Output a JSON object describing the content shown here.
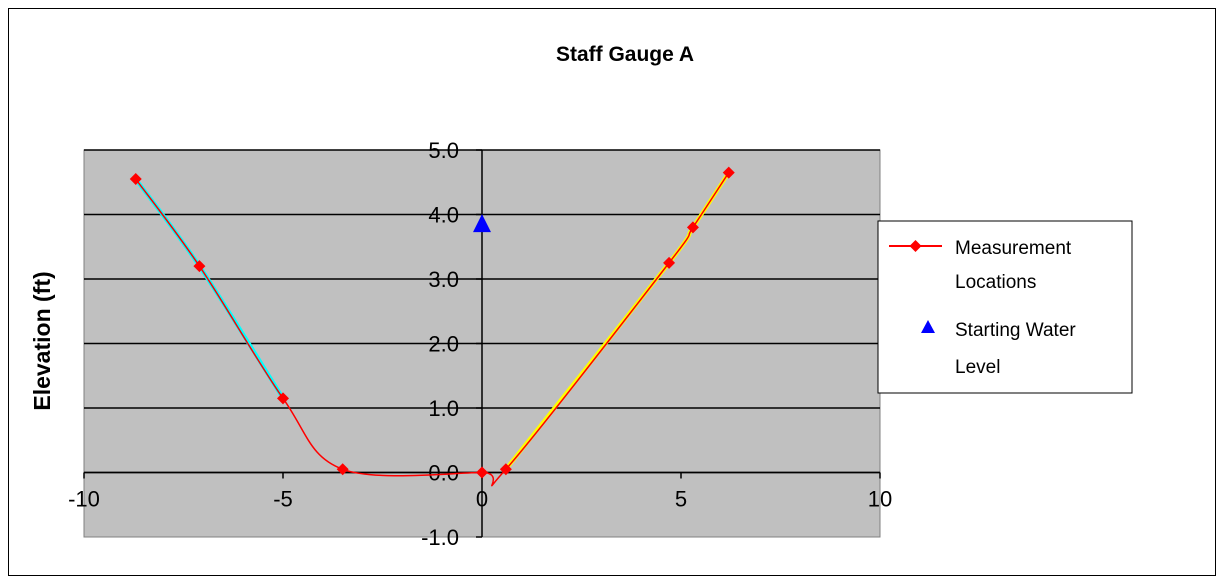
{
  "chart_data": {
    "type": "line",
    "title": "Staff Gauge A",
    "ylabel": "Elevation (ft)",
    "xlabel": "",
    "xlim": [
      -10,
      10
    ],
    "ylim": [
      -1.0,
      5.0
    ],
    "x_ticks": [
      "-10",
      "-5",
      "0",
      "5",
      "10"
    ],
    "y_ticks": [
      "-1.0",
      "0.0",
      "1.0",
      "2.0",
      "3.0",
      "4.0",
      "5.0"
    ],
    "grid": true,
    "legend_position": "right",
    "plot_background": "#c0c0c0",
    "series": [
      {
        "name": "Measurement Locations",
        "color": "#ff0000",
        "marker": "diamond",
        "points": [
          {
            "x": -8.7,
            "y": 4.55
          },
          {
            "x": -7.1,
            "y": 3.2
          },
          {
            "x": -5.0,
            "y": 1.15
          },
          {
            "x": -3.5,
            "y": 0.05
          },
          {
            "x": 0.0,
            "y": 0.0
          },
          {
            "x": 0.6,
            "y": 0.05
          },
          {
            "x": 4.7,
            "y": 3.25
          },
          {
            "x": 5.3,
            "y": 3.8
          },
          {
            "x": 6.2,
            "y": 4.65
          }
        ]
      },
      {
        "name": "Starting Water Level",
        "color": "#0000ff",
        "marker": "triangle",
        "points": [
          {
            "x": 0.0,
            "y": 3.85
          }
        ]
      }
    ],
    "highlight_segments": [
      {
        "color": "#00ffff",
        "x": [
          -8.7,
          -5.0
        ]
      },
      {
        "color": "#ffff00",
        "x": [
          0.6,
          6.2
        ]
      }
    ]
  }
}
